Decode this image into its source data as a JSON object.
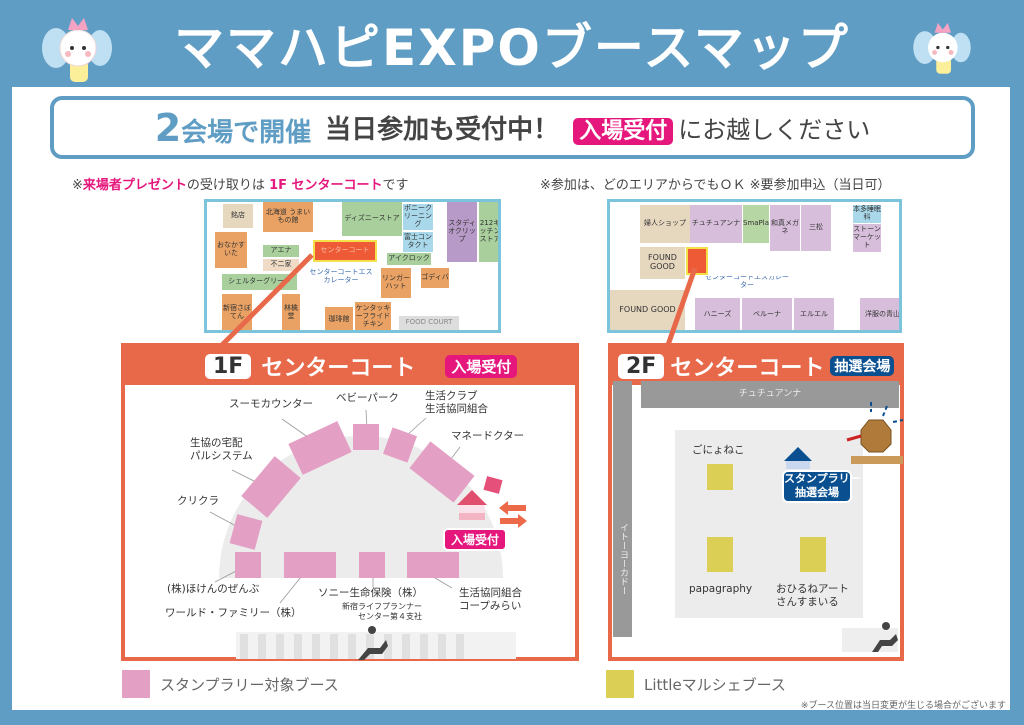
{
  "title": "ママハピEXPOブースマップ",
  "banner": {
    "big": "2",
    "venues": "会場で開催",
    "mid": "当日参加も受付中！",
    "badge": "入場受付",
    "tail": "にお越しください"
  },
  "notes": {
    "left_prefix": "※",
    "left_pink": "来場者プレゼント",
    "left_mid": "の受け取りは ",
    "left_pink2": "1F センターコート",
    "left_tail": "です",
    "right": "※参加は、どのエリアからでもＯＫ ※要参加申込（当日可）"
  },
  "map1f_small": {
    "labels": [
      "銘店",
      "北海道 うまいもの館",
      "ディズニーストア",
      "ポニークリーニング",
      "おなかすいた",
      "アエナ",
      "不二家",
      "センターコート",
      "富士コンタクト",
      "アイクロック",
      "スタディオクリップ",
      "212キッチンストア",
      "シェルターグリーン",
      "センターコートエスカレーター",
      "新宿さぼてん",
      "林檎堂",
      "珈琲館",
      "ケンタッキーフライドチキン",
      "リンガーハット",
      "ゴディバ",
      "FOOD COURT"
    ]
  },
  "map2f_small": {
    "labels": [
      "婦人ショップ",
      "チュチュアンナ",
      "SmaPla",
      "和真メガネ",
      "三松",
      "本多睡眠科",
      "ストーンマーケット",
      "FOUND GOOD",
      "センターコートエスカレーター",
      "FOUND GOOD",
      "ハニーズ",
      "ベルーナ",
      "エルエル",
      "洋服の青山"
    ]
  },
  "floor1": {
    "floor": "1F",
    "name": "センターコート",
    "tag": "入場受付",
    "tag_color": "#e5177d",
    "booths": [
      "スーモカウンター",
      "ベビーパーク",
      "生活クラブ\n生活協同組合",
      "マネードクター",
      "生協の宅配\nパルシステム",
      "クリクラ",
      "(株)ほけんのぜんぶ",
      "ワールド・ファミリー（株）",
      "ソニー生命保険（株）",
      "新宿ライフプランナー\nセンター第４支社",
      "生活協同組合\nコープみらい"
    ],
    "entrance": "入場受付"
  },
  "floor2": {
    "floor": "2F",
    "name": "センターコート",
    "tag": "抽選会場",
    "tag_color": "#0a4f8f",
    "top_store": "チュチュアンナ",
    "left_store": "イトーヨーカドー",
    "booths": [
      "ごにょねこ",
      "papagraphy",
      "おひるねアート\nさんすまいる"
    ],
    "lottery": "スタンプラリー\n抽選会場"
  },
  "legend": [
    {
      "label": "スタンプラリー対象ブース",
      "color": "#e4a0c4"
    },
    {
      "label": "Littleマルシェブース",
      "color": "#dccf55"
    }
  ],
  "footnote": "※ブース位置は当日変更が生じる場合がございます",
  "colors": {
    "frame": "#5f9dc4",
    "accent_pink": "#e5177d",
    "floor_orange": "#e8694a",
    "lottery_blue": "#0a4f8f"
  }
}
